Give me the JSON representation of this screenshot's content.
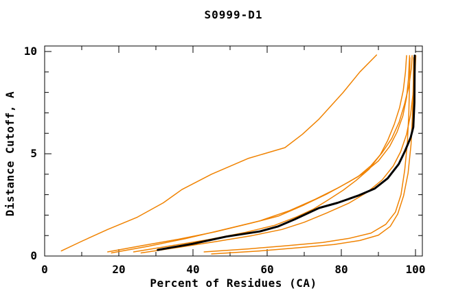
{
  "chart_data": {
    "type": "line",
    "title": "S0999-D1",
    "xlabel": "Percent of Residues (CA)",
    "ylabel": "Distance Cutoff, A",
    "xlim": [
      0,
      101.85
    ],
    "ylim": [
      0,
      10.27
    ],
    "x_major_ticks": [
      0,
      20,
      40,
      60,
      80,
      100
    ],
    "x_minor_ticks": [
      10,
      30,
      50,
      70,
      90
    ],
    "y_major_ticks": [
      0,
      5,
      10
    ],
    "y_minor_ticks": [
      1,
      2,
      3,
      4,
      6,
      7,
      8,
      9
    ],
    "grid": false,
    "legend": "none",
    "colors": {
      "model_curve": "#f08200",
      "highlighted_curve": "#000000",
      "frame": "#000000",
      "background": "#ffffff"
    },
    "series": [
      {
        "name": "model-orange-1",
        "color": "#f08200",
        "width": 1.5,
        "points": [
          [
            4.5,
            0.25
          ],
          [
            10,
            0.72
          ],
          [
            17,
            1.3
          ],
          [
            25,
            1.9
          ],
          [
            32,
            2.6
          ],
          [
            37,
            3.25
          ],
          [
            45,
            4.0
          ],
          [
            55,
            4.78
          ],
          [
            64.8,
            5.3
          ],
          [
            69.5,
            5.95
          ],
          [
            74,
            6.7
          ],
          [
            80.5,
            8.0
          ],
          [
            85,
            9.0
          ],
          [
            89.5,
            9.83
          ]
        ]
      },
      {
        "name": "model-orange-2",
        "color": "#f08200",
        "width": 1.5,
        "points": [
          [
            17,
            0.2
          ],
          [
            26,
            0.5
          ],
          [
            36,
            0.82
          ],
          [
            46,
            1.18
          ],
          [
            56,
            1.62
          ],
          [
            63,
            1.95
          ],
          [
            70,
            2.5
          ],
          [
            76,
            3.02
          ],
          [
            82,
            3.62
          ],
          [
            86,
            4.05
          ],
          [
            90,
            4.65
          ],
          [
            93,
            5.35
          ],
          [
            95,
            6.05
          ],
          [
            96.6,
            6.85
          ],
          [
            97.6,
            7.75
          ],
          [
            98.1,
            8.65
          ],
          [
            98.4,
            9.8
          ]
        ]
      },
      {
        "name": "model-orange-3",
        "color": "#f08200",
        "width": 1.5,
        "points": [
          [
            18,
            0.15
          ],
          [
            28,
            0.48
          ],
          [
            38,
            0.85
          ],
          [
            48,
            1.28
          ],
          [
            58,
            1.72
          ],
          [
            66,
            2.22
          ],
          [
            73,
            2.78
          ],
          [
            79,
            3.32
          ],
          [
            84.5,
            3.88
          ],
          [
            88,
            4.42
          ],
          [
            91,
            5.05
          ],
          [
            93.6,
            5.75
          ],
          [
            95.6,
            6.55
          ],
          [
            97,
            7.4
          ],
          [
            98.2,
            8.3
          ],
          [
            98.9,
            9.2
          ],
          [
            99.1,
            9.8
          ]
        ]
      },
      {
        "name": "model-orange-4",
        "color": "#f08200",
        "width": 1.5,
        "points": [
          [
            24,
            0.2
          ],
          [
            34,
            0.5
          ],
          [
            44,
            0.8
          ],
          [
            54,
            1.15
          ],
          [
            62,
            1.5
          ],
          [
            68,
            1.92
          ],
          [
            72.5,
            2.3
          ],
          [
            76.5,
            2.75
          ],
          [
            80.5,
            3.22
          ],
          [
            84,
            3.7
          ],
          [
            87.5,
            4.25
          ],
          [
            90.5,
            4.95
          ],
          [
            92.5,
            5.65
          ],
          [
            94.3,
            6.45
          ],
          [
            95.7,
            7.25
          ],
          [
            96.7,
            8.1
          ],
          [
            97.3,
            9.0
          ],
          [
            97.6,
            9.8
          ]
        ]
      },
      {
        "name": "model-orange-5",
        "color": "#f08200",
        "width": 1.5,
        "points": [
          [
            26,
            0.15
          ],
          [
            36,
            0.42
          ],
          [
            46,
            0.7
          ],
          [
            56,
            1.0
          ],
          [
            64,
            1.3
          ],
          [
            70,
            1.65
          ],
          [
            76,
            2.1
          ],
          [
            82,
            2.58
          ],
          [
            87,
            3.12
          ],
          [
            91,
            3.72
          ],
          [
            94,
            4.4
          ],
          [
            96,
            5.1
          ],
          [
            97.6,
            5.95
          ],
          [
            98.7,
            6.95
          ],
          [
            99.4,
            8.05
          ],
          [
            99.9,
            9.1
          ],
          [
            100.1,
            9.8
          ]
        ]
      },
      {
        "name": "model-orange-6",
        "color": "#f08200",
        "width": 1.5,
        "points": [
          [
            43,
            0.2
          ],
          [
            55,
            0.35
          ],
          [
            65,
            0.5
          ],
          [
            75,
            0.66
          ],
          [
            82,
            0.86
          ],
          [
            88,
            1.12
          ],
          [
            92,
            1.55
          ],
          [
            94.6,
            2.15
          ],
          [
            96.1,
            3.0
          ],
          [
            97.1,
            4.2
          ],
          [
            97.8,
            5.5
          ],
          [
            98.2,
            7.0
          ],
          [
            98.4,
            8.5
          ],
          [
            98.5,
            9.7
          ]
        ]
      },
      {
        "name": "model-orange-7",
        "color": "#f08200",
        "width": 1.5,
        "points": [
          [
            45,
            0.1
          ],
          [
            58,
            0.25
          ],
          [
            68,
            0.4
          ],
          [
            78,
            0.56
          ],
          [
            85,
            0.76
          ],
          [
            90,
            1.02
          ],
          [
            93.2,
            1.45
          ],
          [
            95.2,
            2.05
          ],
          [
            96.8,
            2.95
          ],
          [
            98,
            4.05
          ],
          [
            98.8,
            5.45
          ],
          [
            99.2,
            7.0
          ],
          [
            99.4,
            8.5
          ],
          [
            99.5,
            9.7
          ]
        ]
      },
      {
        "name": "model-highlighted-black",
        "color": "#000000",
        "width": 3,
        "points": [
          [
            30.5,
            0.3
          ],
          [
            40,
            0.6
          ],
          [
            49,
            0.95
          ],
          [
            58,
            1.2
          ],
          [
            63,
            1.45
          ],
          [
            67.5,
            1.8
          ],
          [
            74,
            2.35
          ],
          [
            79,
            2.6
          ],
          [
            84.5,
            2.95
          ],
          [
            89,
            3.3
          ],
          [
            92.5,
            3.8
          ],
          [
            95.5,
            4.5
          ],
          [
            97.2,
            5.15
          ],
          [
            98.7,
            5.8
          ],
          [
            99.4,
            6.3
          ],
          [
            99.7,
            7.5
          ],
          [
            99.8,
            9.8
          ]
        ]
      }
    ]
  }
}
